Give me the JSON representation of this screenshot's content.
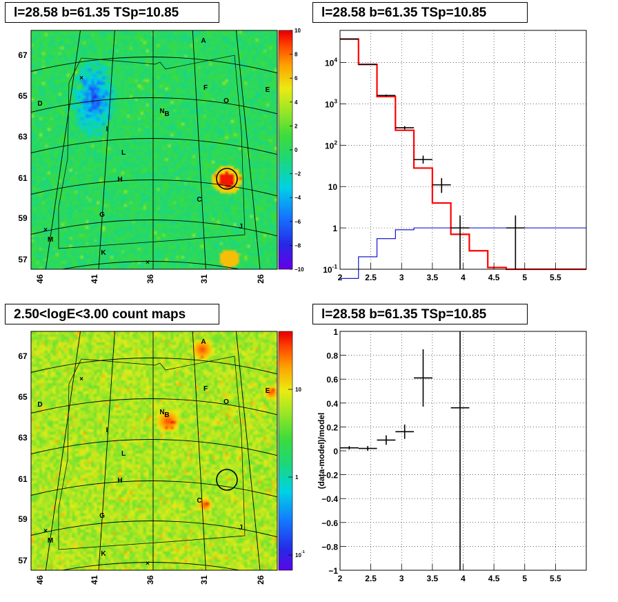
{
  "titles": {
    "map_top": "l=28.58 b=61.35 TSp=10.85",
    "spectrum": "l=28.58 b=61.35 TSp=10.85",
    "map_bottom": "2.50<logE<3.00 count maps",
    "residual": "l=28.58 b=61.35 TSp=10.85"
  },
  "source_labels": [
    "A",
    "B",
    "C",
    "D",
    "E",
    "F",
    "G",
    "H",
    "I",
    "J",
    "K",
    "L",
    "M",
    "N",
    "O"
  ],
  "chart_data": [
    {
      "type": "heatmap",
      "name": "ts-map",
      "colorbar_ticks": [
        "10",
        "8",
        "6",
        "4",
        "2",
        "0",
        "−2",
        "−4",
        "−6",
        "−8",
        "−10"
      ],
      "colorbar_range": [
        -10,
        10
      ],
      "lat_ticks": [
        "67",
        "65",
        "63",
        "61",
        "59",
        "57"
      ],
      "lon_ticks": [
        "46",
        "41",
        "36",
        "31",
        "26"
      ],
      "sources": {
        "A": "A",
        "B": "B",
        "C": "C",
        "D": "D",
        "E": "E",
        "F": "F",
        "G": "G",
        "H": "H",
        "I": "I",
        "J": "J",
        "K": "K",
        "L": "L",
        "M": "M",
        "N": "N",
        "O": "O"
      },
      "colors": {
        "high": "#ff0000",
        "mid": "#33dd33",
        "low": "#3344dd"
      }
    },
    {
      "type": "line",
      "name": "spectrum",
      "xlim": [
        2,
        6
      ],
      "ylim": [
        0.1,
        60000
      ],
      "yscale": "log",
      "x_ticks": [
        "2",
        "2.5",
        "3",
        "3.5",
        "4",
        "4.5",
        "5",
        "5.5"
      ],
      "y_ticks": [
        "10^4",
        "10^3",
        "10^2",
        "10",
        "1",
        "10^-1"
      ],
      "grid": true,
      "series": [
        {
          "color": "#ff0000",
          "style": "step",
          "bin_edges": [
            2.0,
            2.3,
            2.6,
            2.9,
            3.2,
            3.5,
            3.8,
            4.1,
            4.4,
            4.7,
            5.0,
            5.3,
            5.6,
            6.0
          ],
          "values": [
            37000,
            9000,
            1500,
            230,
            28,
            4,
            0.7,
            0.28,
            0.11,
            0.1,
            0.1,
            0.1,
            0.1
          ]
        },
        {
          "color": "#0000cc",
          "style": "step",
          "bin_edges": [
            2.0,
            2.3,
            2.6,
            2.9,
            3.2,
            3.5,
            3.8,
            4.1,
            4.4,
            4.7,
            5.0,
            5.3,
            5.6,
            6.0
          ],
          "values": [
            0.06,
            0.2,
            0.55,
            0.9,
            1.0,
            1.0,
            1.0,
            1.0,
            1.0,
            1.0,
            1.0,
            1.0,
            1.0
          ]
        },
        {
          "color": "#000000",
          "style": "errorbar",
          "points": [
            {
              "x": 2.15,
              "xerr": 0.15,
              "y": 37000,
              "ylo": 36500,
              "yhi": 37500
            },
            {
              "x": 2.45,
              "xerr": 0.15,
              "y": 9000,
              "ylo": 8800,
              "yhi": 9200
            },
            {
              "x": 2.75,
              "xerr": 0.15,
              "y": 1600,
              "ylo": 1520,
              "yhi": 1680
            },
            {
              "x": 3.05,
              "xerr": 0.15,
              "y": 265,
              "ylo": 240,
              "yhi": 290
            },
            {
              "x": 3.35,
              "xerr": 0.15,
              "y": 45,
              "ylo": 36,
              "yhi": 56
            },
            {
              "x": 3.65,
              "xerr": 0.15,
              "y": 11,
              "ylo": 7,
              "yhi": 16
            },
            {
              "x": 3.95,
              "xerr": 0.15,
              "y": 1,
              "ylo": 0.1,
              "yhi": 2
            },
            {
              "x": 4.85,
              "xerr": 0.15,
              "y": 1,
              "ylo": 0.1,
              "yhi": 2
            }
          ]
        }
      ]
    },
    {
      "type": "heatmap",
      "name": "count-map",
      "colorbar_ticks": [
        "10",
        "1",
        "10^-1"
      ],
      "colorbar_range": [
        0.06,
        30
      ],
      "colorbar_scale": "log",
      "lat_ticks": [
        "67",
        "65",
        "63",
        "61",
        "59",
        "57"
      ],
      "lon_ticks": [
        "46",
        "41",
        "36",
        "31",
        "26"
      ],
      "sources": {
        "A": "A",
        "B": "B",
        "C": "C",
        "D": "D",
        "E": "E",
        "F": "F",
        "G": "G",
        "H": "H",
        "I": "I",
        "J": "J",
        "K": "K",
        "L": "L",
        "M": "M",
        "N": "N",
        "O": "O"
      },
      "colors": {
        "background": "#a5e830",
        "hot": "#ff4400"
      }
    },
    {
      "type": "scatter",
      "name": "residuals",
      "ylabel": "(data-model)/model",
      "xlim": [
        2,
        6
      ],
      "ylim": [
        -1,
        1
      ],
      "x_ticks": [
        "2",
        "2.5",
        "3",
        "3.5",
        "4",
        "4.5",
        "5",
        "5.5"
      ],
      "y_ticks": [
        "1",
        "0.8",
        "0.6",
        "0.4",
        "0.2",
        "0",
        "−0.2",
        "−0.4",
        "−0.6",
        "−0.8",
        "−1"
      ],
      "grid": true,
      "points": [
        {
          "x": 2.15,
          "xerr": 0.15,
          "y": 0.025,
          "ylo": 0.01,
          "yhi": 0.04
        },
        {
          "x": 2.45,
          "xerr": 0.15,
          "y": 0.02,
          "ylo": 0.0,
          "yhi": 0.04
        },
        {
          "x": 2.75,
          "xerr": 0.15,
          "y": 0.09,
          "ylo": 0.05,
          "yhi": 0.13
        },
        {
          "x": 3.05,
          "xerr": 0.15,
          "y": 0.16,
          "ylo": 0.1,
          "yhi": 0.22
        },
        {
          "x": 3.35,
          "xerr": 0.15,
          "y": 0.61,
          "ylo": 0.37,
          "yhi": 0.85
        },
        {
          "x": 3.95,
          "xerr": 0.15,
          "y": 0.36,
          "ylo": -1.0,
          "yhi": 1.0
        }
      ]
    }
  ]
}
